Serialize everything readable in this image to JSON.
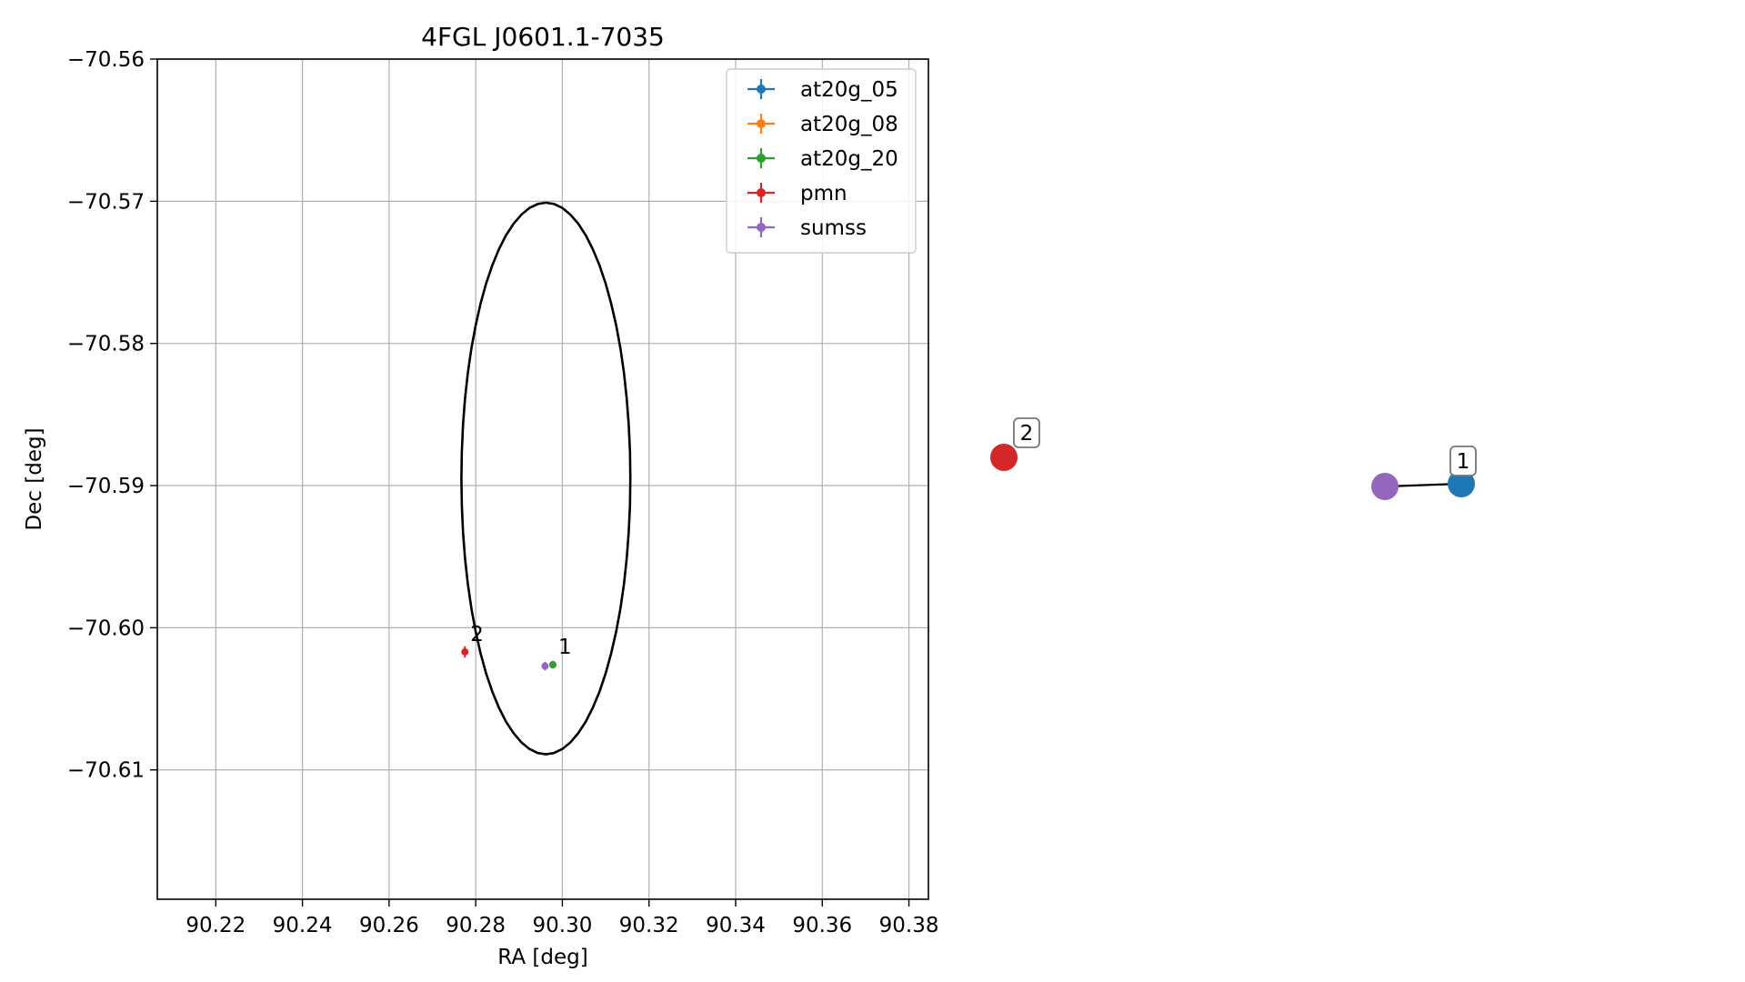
{
  "chart_data": [
    {
      "type": "scatter",
      "title": "4FGL J0601.1-7035",
      "xlabel": "RA [deg]",
      "ylabel": "Dec [deg]",
      "xlim": [
        90.2065,
        90.3845
      ],
      "ylim": [
        -70.6191,
        -70.56
      ],
      "xticks": [
        90.22,
        90.24,
        90.26,
        90.28,
        90.3,
        90.32,
        90.34,
        90.36,
        90.38
      ],
      "xtick_labels": [
        "90.22",
        "90.24",
        "90.26",
        "90.28",
        "90.30",
        "90.32",
        "90.34",
        "90.36",
        "90.38"
      ],
      "yticks": [
        -70.56,
        -70.57,
        -70.58,
        -70.59,
        -70.6,
        -70.61
      ],
      "ytick_labels": [
        "−70.56",
        "−70.57",
        "−70.58",
        "−70.59",
        "−70.60",
        "−70.61"
      ],
      "grid": true,
      "legend_position": "top-right",
      "series": [
        {
          "name": "at20g_05",
          "color": "#1f77b4",
          "points": [
            {
              "x": 90.2978,
              "y": -70.6026,
              "xerr": 0.0003,
              "yerr": 0.0001
            }
          ]
        },
        {
          "name": "at20g_08",
          "color": "#ff7f0e",
          "points": [
            {
              "x": 90.2978,
              "y": -70.6026,
              "xerr": 0.0003,
              "yerr": 0.0001
            }
          ]
        },
        {
          "name": "at20g_20",
          "color": "#2ca02c",
          "points": [
            {
              "x": 90.2978,
              "y": -70.6026,
              "xerr": 0.0003,
              "yerr": 0.0001
            }
          ]
        },
        {
          "name": "pmn",
          "color": "#d62728",
          "points": [
            {
              "x": 90.2775,
              "y": -70.6017,
              "xerr": 0.0004,
              "yerr": 0.0004
            }
          ]
        },
        {
          "name": "sumss",
          "color": "#9467bd",
          "points": [
            {
              "x": 90.296,
              "y": -70.6027,
              "xerr": 0.0004,
              "yerr": 0.0003
            }
          ]
        }
      ],
      "ellipse": {
        "center_x": 90.2962,
        "center_y": -70.5895,
        "semi_x_deg": 0.0195,
        "semi_y_deg": 0.0194,
        "color": "#000000"
      },
      "annotations": [
        {
          "text": "2",
          "x": 90.2775,
          "y": -70.6017
        },
        {
          "text": "1",
          "x": 90.2978,
          "y": -70.6026
        }
      ]
    },
    {
      "type": "network",
      "nodes": [
        {
          "id": "pmn",
          "label": "2",
          "color": "#d62728"
        },
        {
          "id": "sumss",
          "label": "",
          "color": "#9467bd"
        },
        {
          "id": "at20g",
          "label": "1",
          "color": "#1f77b4"
        }
      ],
      "edges": [
        [
          "sumss",
          "at20g"
        ]
      ]
    }
  ]
}
